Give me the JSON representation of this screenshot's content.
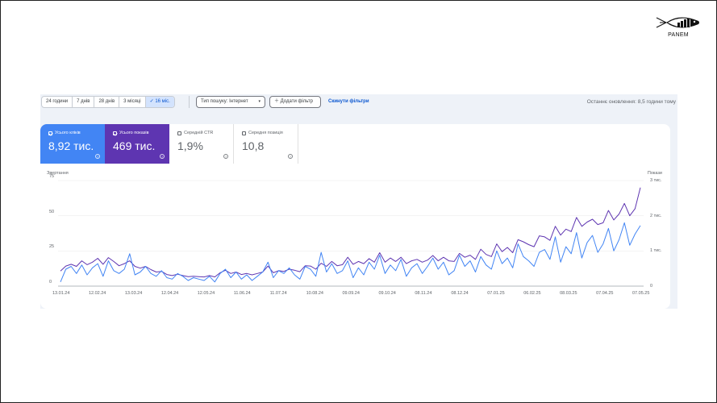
{
  "brand": {
    "logo_text": "PANEM",
    "logo_icon": "fish-icon"
  },
  "toolbar": {
    "date_ranges": [
      {
        "label": "24 години",
        "active": false
      },
      {
        "label": "7 днів",
        "active": false
      },
      {
        "label": "28 днів",
        "active": false
      },
      {
        "label": "3 місяці",
        "active": false
      },
      {
        "label": "16 міс.",
        "active": true
      }
    ],
    "search_type": "Тип пошуку: Інтернет",
    "add_filter": "Додати фільтр",
    "reset_filters": "Скинути фільтри",
    "last_updated": "Останнє оновлення: 8,5 години тому"
  },
  "metrics": [
    {
      "label": "Усього кліків",
      "value": "8,92 тис.",
      "checked": true,
      "color": "#4285f4"
    },
    {
      "label": "Усього показів",
      "value": "469 тис.",
      "checked": true,
      "color": "#5e35b1"
    },
    {
      "label": "Середній CTR",
      "value": "1,9%",
      "checked": false,
      "color": "#ffffff"
    },
    {
      "label": "Середня позиція",
      "value": "10,8",
      "checked": false,
      "color": "#ffffff"
    }
  ],
  "chart_data": {
    "type": "line",
    "title": "",
    "xlabel": "",
    "ylabel_left": "Звертання",
    "ylabel_right": "Покази",
    "ylim_left": [
      0,
      75
    ],
    "ylim_right": [
      0,
      3000
    ],
    "yticks_left": [
      "0",
      "25",
      "50",
      "75"
    ],
    "yticks_right": [
      "0",
      "1 тис.",
      "2 тис.",
      "3 тис."
    ],
    "grid": true,
    "legend_position": "none",
    "x": [
      "13.01.24",
      "12.02.24",
      "13.03.24",
      "12.04.24",
      "12.05.24",
      "11.06.24",
      "11.07.24",
      "10.08.24",
      "09.09.24",
      "09.10.24",
      "08.11.24",
      "08.12.24",
      "07.01.25",
      "06.02.25",
      "08.03.25",
      "07.04.25",
      "07.05.25"
    ],
    "series": [
      {
        "name": "Кліки",
        "axis": "left",
        "color": "#4285f4",
        "values": [
          3,
          12,
          14,
          9,
          15,
          8,
          13,
          16,
          7,
          18,
          11,
          9,
          12,
          23,
          8,
          10,
          14,
          9,
          7,
          11,
          6,
          5,
          9,
          7,
          4,
          6,
          5,
          4,
          7,
          3,
          9,
          12,
          6,
          10,
          5,
          8,
          4,
          7,
          10,
          17,
          6,
          11,
          9,
          13,
          8,
          5,
          14,
          12,
          7,
          24,
          10,
          16,
          9,
          11,
          18,
          6,
          13,
          8,
          17,
          12,
          22,
          9,
          15,
          11,
          19,
          7,
          13,
          16,
          9,
          14,
          20,
          12,
          17,
          8,
          11,
          22,
          14,
          18,
          10,
          21,
          15,
          12,
          25,
          16,
          20,
          13,
          30,
          21,
          18,
          14,
          24,
          26,
          19,
          35,
          17,
          28,
          23,
          38,
          20,
          31,
          36,
          24,
          30,
          41,
          25,
          33,
          45,
          29,
          37,
          43
        ]
      },
      {
        "name": "Покази",
        "axis": "right",
        "color": "#5e35b1",
        "values": [
          430,
          570,
          620,
          560,
          720,
          610,
          680,
          790,
          620,
          810,
          700,
          580,
          640,
          720,
          560,
          510,
          560,
          470,
          400,
          420,
          330,
          300,
          340,
          300,
          270,
          280,
          270,
          260,
          300,
          260,
          380,
          450,
          360,
          400,
          330,
          360,
          320,
          360,
          400,
          570,
          380,
          440,
          420,
          480,
          450,
          410,
          580,
          570,
          480,
          650,
          560,
          700,
          580,
          610,
          820,
          620,
          700,
          640,
          780,
          680,
          950,
          680,
          800,
          700,
          820,
          640,
          720,
          760,
          680,
          740,
          870,
          720,
          820,
          720,
          700,
          930,
          820,
          880,
          760,
          1050,
          900,
          840,
          1200,
          980,
          1100,
          950,
          1320,
          1260,
          1180,
          1120,
          1430,
          1400,
          1300,
          1700,
          1450,
          1620,
          1550,
          1950,
          1700,
          1820,
          1900,
          1750,
          1800,
          2150,
          1880,
          2050,
          2350,
          2000,
          2200,
          2800
        ]
      }
    ]
  }
}
